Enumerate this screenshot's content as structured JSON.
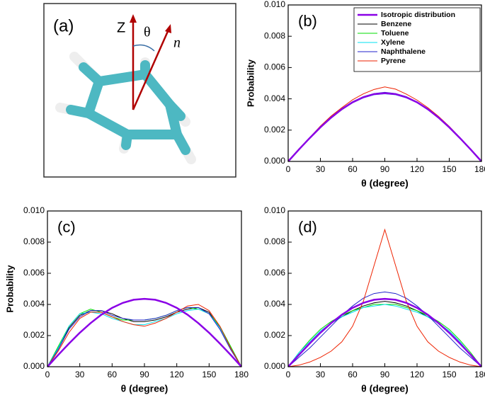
{
  "diagram": {
    "label": "(a)",
    "z_label": "Z",
    "theta_label": "θ",
    "n_label": "n⃗"
  },
  "chart_data": [
    {
      "type": "line",
      "panel_label": "(b)",
      "xlabel": "θ  (degree)",
      "ylabel": "Probability",
      "legend": "upper right",
      "x": [
        0,
        10,
        20,
        30,
        40,
        50,
        60,
        70,
        80,
        90,
        100,
        110,
        120,
        130,
        140,
        150,
        160,
        170,
        180
      ],
      "xlim": [
        0,
        180
      ],
      "xticks": [
        0,
        30,
        60,
        90,
        120,
        150,
        180
      ],
      "ylim": [
        0,
        0.01
      ],
      "yticks": [
        {
          "value": 0,
          "label": "0.000"
        },
        {
          "value": 0.002,
          "label": "0.002"
        },
        {
          "value": 0.004,
          "label": "0.004"
        },
        {
          "value": 0.006,
          "label": "0.006"
        },
        {
          "value": 0.008,
          "label": "0.008"
        },
        {
          "value": 0.01,
          "label": "0.010"
        }
      ],
      "series": [
        {
          "name": "Benzene",
          "color": "#000000",
          "values": [
            0,
            0.00078,
            0.0015,
            0.0022,
            0.00282,
            0.00336,
            0.0038,
            0.00412,
            0.00428,
            0.0044,
            0.00432,
            0.00408,
            0.00376,
            0.00332,
            0.00282,
            0.00216,
            0.0015,
            0.00076,
            0
          ]
        },
        {
          "name": "Toluene",
          "color": "#00dd00",
          "values": [
            0,
            0.00074,
            0.00148,
            0.00216,
            0.0028,
            0.0033,
            0.00376,
            0.00408,
            0.00432,
            0.00436,
            0.00428,
            0.00412,
            0.0038,
            0.00336,
            0.00278,
            0.0022,
            0.00148,
            0.00078,
            0
          ]
        },
        {
          "name": "Xylene",
          "color": "#00e0f0",
          "values": [
            0,
            0.00076,
            0.00146,
            0.00218,
            0.00276,
            0.00332,
            0.00374,
            0.00406,
            0.00426,
            0.00432,
            0.00426,
            0.00406,
            0.00376,
            0.0033,
            0.0028,
            0.00216,
            0.00146,
            0.00074,
            0
          ]
        },
        {
          "name": "Naphthalene",
          "color": "#2222cc",
          "values": [
            0,
            0.00076,
            0.0015,
            0.00222,
            0.00284,
            0.00338,
            0.00382,
            0.00414,
            0.00434,
            0.00442,
            0.00434,
            0.00414,
            0.0038,
            0.00336,
            0.00284,
            0.0022,
            0.0015,
            0.00076,
            0
          ]
        },
        {
          "name": "Pyrene",
          "color": "#ee2200",
          "values": [
            0,
            0.0008,
            0.00152,
            0.00226,
            0.0029,
            0.00344,
            0.00394,
            0.00432,
            0.0046,
            0.00476,
            0.00462,
            0.0043,
            0.00392,
            0.00344,
            0.00288,
            0.00224,
            0.00152,
            0.00078,
            0
          ]
        },
        {
          "name": "Isotropic distribution",
          "color": "#8a00e6",
          "width": 2.5,
          "values": [
            0,
            0.00076,
            0.00149,
            0.00218,
            0.0028,
            0.00334,
            0.00378,
            0.0041,
            0.0043,
            0.00436,
            0.0043,
            0.0041,
            0.00378,
            0.00334,
            0.0028,
            0.00218,
            0.00149,
            0.00076,
            0
          ]
        }
      ]
    },
    {
      "type": "line",
      "panel_label": "(c)",
      "xlabel": "θ  (degree)",
      "ylabel": "Probability",
      "x": [
        0,
        10,
        20,
        30,
        40,
        50,
        60,
        70,
        80,
        90,
        100,
        110,
        120,
        130,
        140,
        150,
        160,
        170,
        180
      ],
      "xlim": [
        0,
        180
      ],
      "xticks": [
        0,
        30,
        60,
        90,
        120,
        150,
        180
      ],
      "ylim": [
        0,
        0.01
      ],
      "yticks": [
        {
          "value": 0,
          "label": "0.000"
        },
        {
          "value": 0.002,
          "label": "0.002"
        },
        {
          "value": 0.004,
          "label": "0.004"
        },
        {
          "value": 0.006,
          "label": "0.006"
        },
        {
          "value": 0.008,
          "label": "0.008"
        },
        {
          "value": 0.01,
          "label": "0.010"
        }
      ],
      "series": [
        {
          "name": "Benzene",
          "color": "#000000",
          "values": [
            0,
            0.0012,
            0.0025,
            0.0033,
            0.0036,
            0.0036,
            0.0034,
            0.0031,
            0.0029,
            0.0029,
            0.003,
            0.0032,
            0.0035,
            0.0037,
            0.0038,
            0.0035,
            0.0025,
            0.0012,
            0
          ]
        },
        {
          "name": "Toluene",
          "color": "#00dd00",
          "values": [
            0,
            0.0013,
            0.0026,
            0.0034,
            0.0037,
            0.0035,
            0.0032,
            0.003,
            0.003,
            0.003,
            0.0031,
            0.0033,
            0.0036,
            0.0038,
            0.0037,
            0.0034,
            0.0026,
            0.0013,
            0
          ]
        },
        {
          "name": "Xylene",
          "color": "#00e0f0",
          "values": [
            0,
            0.0012,
            0.0026,
            0.0034,
            0.0035,
            0.0034,
            0.0031,
            0.0029,
            0.0027,
            0.0027,
            0.0029,
            0.0031,
            0.0034,
            0.0036,
            0.0037,
            0.0034,
            0.0025,
            0.0012,
            0
          ]
        },
        {
          "name": "Naphthalene",
          "color": "#2222cc",
          "values": [
            0,
            0.0011,
            0.0024,
            0.0032,
            0.0036,
            0.0036,
            0.0033,
            0.0031,
            0.003,
            0.003,
            0.0031,
            0.0033,
            0.0036,
            0.0038,
            0.0038,
            0.0034,
            0.0024,
            0.0011,
            0
          ]
        },
        {
          "name": "Pyrene",
          "color": "#ee2200",
          "values": [
            0,
            0.001,
            0.0022,
            0.0031,
            0.0035,
            0.0035,
            0.0032,
            0.0029,
            0.0027,
            0.0026,
            0.0028,
            0.0031,
            0.0035,
            0.0039,
            0.004,
            0.0036,
            0.0026,
            0.0012,
            0
          ]
        },
        {
          "name": "Isotropic distribution",
          "color": "#8a00e6",
          "width": 2.5,
          "values": [
            0,
            0.00076,
            0.00149,
            0.00218,
            0.0028,
            0.00334,
            0.00378,
            0.0041,
            0.0043,
            0.00436,
            0.0043,
            0.0041,
            0.00378,
            0.00334,
            0.0028,
            0.00218,
            0.00149,
            0.00076,
            0
          ]
        }
      ]
    },
    {
      "type": "line",
      "panel_label": "(d)",
      "xlabel": "θ  (degree)",
      "x": [
        0,
        10,
        20,
        30,
        40,
        50,
        60,
        70,
        80,
        90,
        100,
        110,
        120,
        130,
        140,
        150,
        160,
        170,
        180
      ],
      "xlim": [
        0,
        180
      ],
      "xticks": [
        0,
        30,
        60,
        90,
        120,
        150,
        180
      ],
      "ylim": [
        0,
        0.01
      ],
      "yticks": [
        {
          "value": 0,
          "label": "0.000"
        },
        {
          "value": 0.002,
          "label": "0.002"
        },
        {
          "value": 0.004,
          "label": "0.004"
        },
        {
          "value": 0.006,
          "label": "0.006"
        },
        {
          "value": 0.008,
          "label": "0.008"
        },
        {
          "value": 0.01,
          "label": "0.010"
        }
      ],
      "series": [
        {
          "name": "Benzene",
          "color": "#000000",
          "values": [
            0,
            0.0008,
            0.0015,
            0.0022,
            0.0028,
            0.0032,
            0.0036,
            0.0039,
            0.0041,
            0.0042,
            0.0041,
            0.0039,
            0.0036,
            0.0032,
            0.0028,
            0.0022,
            0.0015,
            0.0008,
            0
          ]
        },
        {
          "name": "Toluene",
          "color": "#00dd00",
          "values": [
            0,
            0.0009,
            0.0017,
            0.0024,
            0.0029,
            0.0033,
            0.0036,
            0.0038,
            0.004,
            0.004,
            0.004,
            0.0038,
            0.0036,
            0.0033,
            0.0029,
            0.0024,
            0.0017,
            0.0009,
            0
          ]
        },
        {
          "name": "Xylene",
          "color": "#00e0f0",
          "values": [
            0,
            0.0009,
            0.0016,
            0.0023,
            0.0028,
            0.0032,
            0.0035,
            0.0038,
            0.0039,
            0.004,
            0.0039,
            0.0037,
            0.0035,
            0.0032,
            0.0028,
            0.0023,
            0.0016,
            0.0008,
            0
          ]
        },
        {
          "name": "Naphthalene",
          "color": "#2222cc",
          "values": [
            0,
            0.0006,
            0.0012,
            0.0019,
            0.0026,
            0.0033,
            0.0039,
            0.0044,
            0.0047,
            0.0048,
            0.0047,
            0.0044,
            0.0039,
            0.0033,
            0.0026,
            0.0019,
            0.0012,
            0.0006,
            0
          ]
        },
        {
          "name": "Pyrene",
          "color": "#ee2200",
          "values": [
            0,
            0.0001,
            0.0003,
            0.0006,
            0.001,
            0.0016,
            0.0026,
            0.0042,
            0.0065,
            0.0088,
            0.0065,
            0.0042,
            0.0026,
            0.0016,
            0.001,
            0.0006,
            0.0003,
            0.0001,
            0
          ]
        },
        {
          "name": "Isotropic distribution",
          "color": "#8a00e6",
          "width": 2.5,
          "values": [
            0,
            0.00076,
            0.00149,
            0.00218,
            0.0028,
            0.00334,
            0.00378,
            0.0041,
            0.0043,
            0.00436,
            0.0043,
            0.0041,
            0.00378,
            0.00334,
            0.0028,
            0.00218,
            0.00149,
            0.00076,
            0
          ]
        }
      ]
    }
  ]
}
